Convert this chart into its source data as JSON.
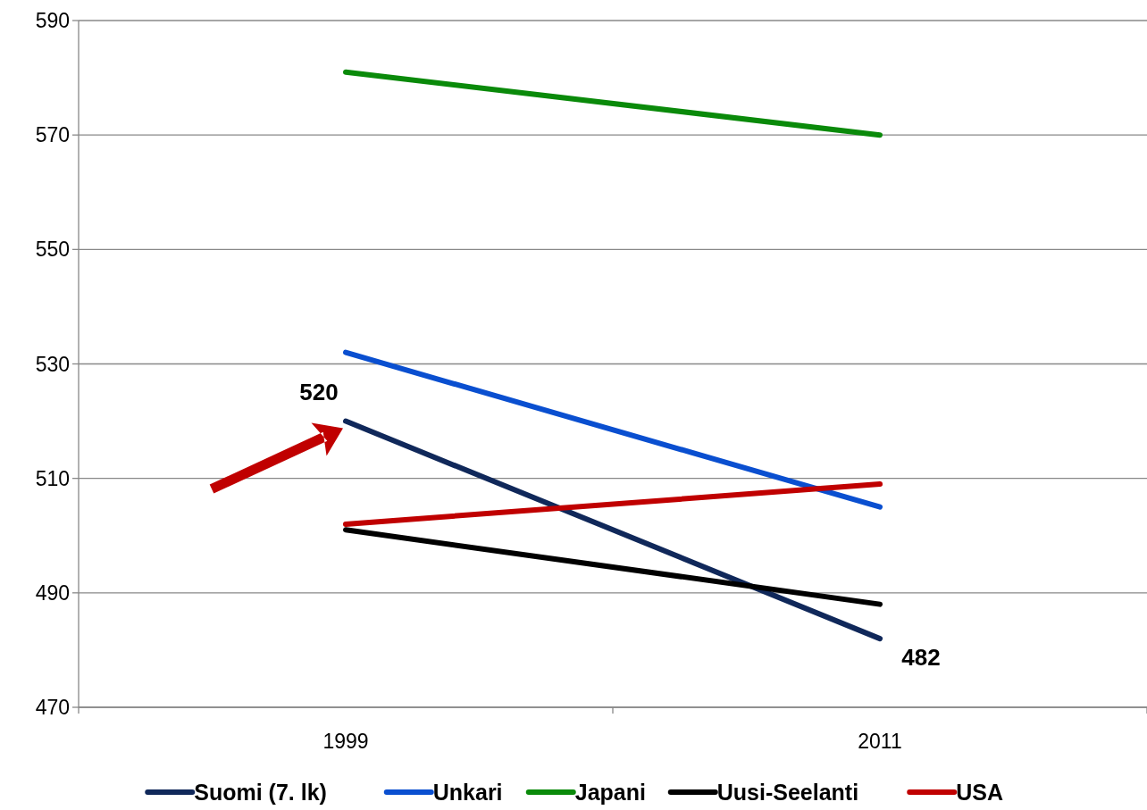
{
  "chart_data": {
    "type": "line",
    "categories": [
      "1999",
      "2011"
    ],
    "series": [
      {
        "name": "Suomi (7. lk)",
        "color": "#10285a",
        "values": [
          520,
          482
        ],
        "value_labels": [
          "520",
          "482"
        ]
      },
      {
        "name": "Unkari",
        "color": "#0a4fd0",
        "values": [
          532,
          505
        ]
      },
      {
        "name": "Japani",
        "color": "#0a8a0a",
        "values": [
          581,
          570
        ]
      },
      {
        "name": "Uusi-Seelanti",
        "color": "#000000",
        "values": [
          501,
          488
        ]
      },
      {
        "name": "USA",
        "color": "#c00000",
        "values": [
          502,
          509
        ]
      }
    ],
    "ylim": [
      470,
      590
    ],
    "yticks": [
      470,
      490,
      510,
      530,
      550,
      570,
      590
    ],
    "grid": "y",
    "legend": "bottom",
    "marker": "none",
    "line_style": "solid"
  }
}
